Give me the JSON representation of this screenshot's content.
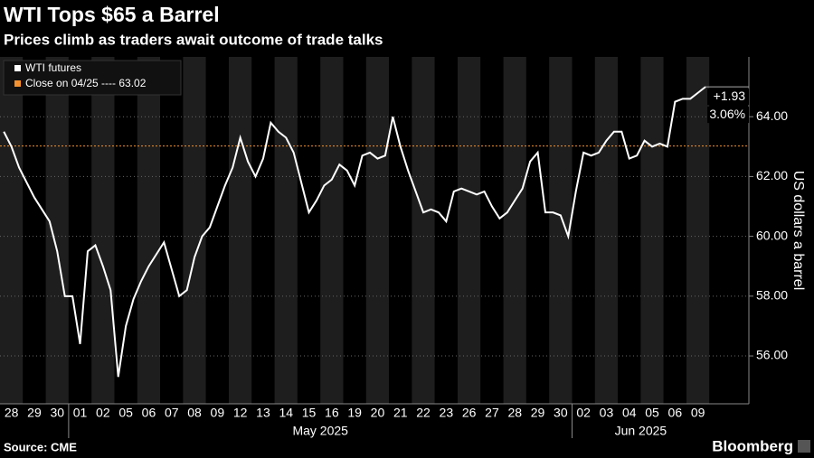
{
  "chart_data": {
    "type": "line",
    "title": "WTI Tops $65 a Barrel",
    "subtitle": "Prices climb as traders await outcome of trade talks",
    "source": "Source: CME",
    "brand": "Bloomberg",
    "y_label": "US dollars a barrel",
    "categories": [
      "28",
      "29",
      "30",
      "01",
      "02",
      "05",
      "06",
      "07",
      "08",
      "09",
      "12",
      "13",
      "14",
      "15",
      "16",
      "19",
      "20",
      "21",
      "22",
      "23",
      "26",
      "27",
      "28",
      "29",
      "30",
      "02",
      "03",
      "04",
      "05",
      "06",
      "09"
    ],
    "months": [
      {
        "label": "May 2025",
        "start": 3,
        "end": 24
      },
      {
        "label": "Jun 2025",
        "start": 25,
        "end": 30
      }
    ],
    "series": [
      {
        "name": "WTI futures",
        "color": "#ffffff",
        "values": [
          [
            63.5,
            63.0,
            62.3
          ],
          [
            61.8,
            61.3,
            60.9
          ],
          [
            60.5,
            59.5,
            58.0
          ],
          [
            58.0,
            56.4,
            59.5
          ],
          [
            59.7,
            59.0,
            58.2
          ],
          [
            55.3,
            57.0,
            57.9
          ],
          [
            58.5,
            59.0,
            59.4
          ],
          [
            59.8,
            58.9,
            58.0
          ],
          [
            58.2,
            59.3,
            60.0
          ],
          [
            60.3,
            61.0,
            61.7
          ],
          [
            62.3,
            63.3,
            62.5
          ],
          [
            62.0,
            62.6,
            63.8
          ],
          [
            63.5,
            63.3,
            62.8
          ],
          [
            61.8,
            60.8,
            61.2
          ],
          [
            61.7,
            61.9,
            62.4
          ],
          [
            62.2,
            61.7,
            62.7
          ],
          [
            62.8,
            62.6,
            62.7
          ],
          [
            64.0,
            63.0,
            62.2
          ],
          [
            61.5,
            60.8,
            60.9
          ],
          [
            60.8,
            60.5,
            61.5
          ],
          [
            61.6,
            61.5,
            61.4
          ],
          [
            61.5,
            61.0,
            60.6
          ],
          [
            60.8,
            61.2,
            61.6
          ],
          [
            62.5,
            62.8,
            60.8
          ],
          [
            60.8,
            60.7,
            60.0
          ],
          [
            61.5,
            62.8,
            62.7
          ],
          [
            62.8,
            63.2,
            63.5
          ],
          [
            63.5,
            62.6,
            62.7
          ],
          [
            63.2,
            63.0,
            63.1
          ],
          [
            63.0,
            64.5,
            64.6
          ],
          [
            64.6,
            64.8,
            65.0
          ]
        ]
      }
    ],
    "reference_line": {
      "name": "Close on 04/25 ---- 63.02",
      "value": 63.02,
      "color": "#f5922f"
    },
    "annotations": [
      "+1.93",
      "3.06%"
    ],
    "ylim": [
      54.4,
      66
    ],
    "yticks": [
      {
        "value": 56,
        "label": "56.00"
      },
      {
        "value": 58,
        "label": "58.00"
      },
      {
        "value": 60,
        "label": "60.00"
      },
      {
        "value": 62,
        "label": "62.00"
      },
      {
        "value": 64,
        "label": "64.00"
      }
    ],
    "grid": true
  }
}
